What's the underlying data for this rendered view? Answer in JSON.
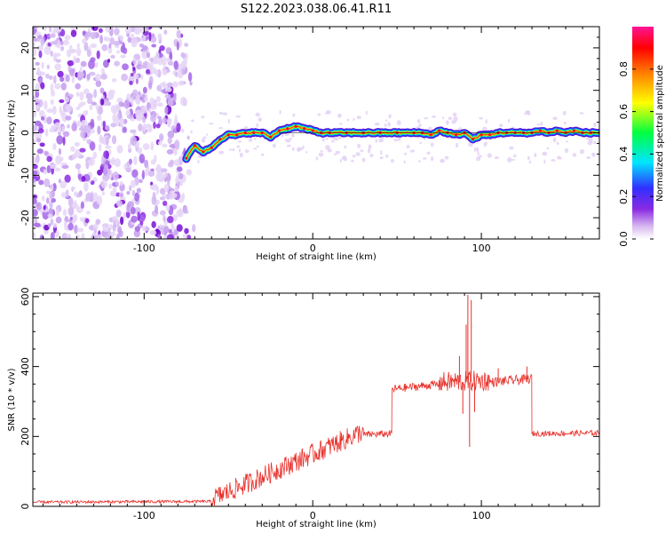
{
  "title": "S122.2023.038.06.41.R11",
  "chart_data": [
    {
      "type": "heatmap",
      "name": "spectrogram",
      "xlabel": "Height of straight line (km)",
      "ylabel": "Frequency (Hz)",
      "xlim": [
        -166,
        170
      ],
      "ylim": [
        -25,
        25
      ],
      "xticks": [
        -100,
        0,
        100
      ],
      "yticks": [
        -20,
        -10,
        0,
        10,
        20
      ],
      "noise_region_x": [
        -166,
        -72
      ],
      "ridge": {
        "x": [
          -75,
          -70,
          -65,
          -60,
          -55,
          -50,
          -45,
          -40,
          -35,
          -30,
          -25,
          -20,
          -15,
          -10,
          -5,
          0,
          5,
          10,
          20,
          30,
          40,
          50,
          60,
          65,
          70,
          75,
          80,
          85,
          90,
          95,
          100,
          105,
          110,
          115,
          120,
          125,
          130,
          135,
          140,
          145,
          150,
          155,
          160,
          165,
          170
        ],
        "freq": [
          -6,
          -3,
          -4.5,
          -3.5,
          -1.5,
          -0.5,
          -0.5,
          0,
          0,
          0,
          -1,
          0.5,
          1,
          1.5,
          1,
          0.5,
          0,
          0,
          0,
          0,
          0,
          0,
          0,
          0,
          -0.5,
          0.5,
          0,
          -0.5,
          0,
          -1.5,
          -0.5,
          -0.5,
          0,
          0,
          0,
          0,
          0,
          0.5,
          0,
          0.5,
          0,
          0.5,
          0,
          0,
          0
        ]
      },
      "colorbar": {
        "label": "Normalized spectral amplitude",
        "range": [
          0,
          1
        ],
        "ticks": [
          "0.0",
          "0.2",
          "0.4",
          "0.6",
          "0.8"
        ],
        "tick_values": [
          0,
          0.2,
          0.4,
          0.6,
          0.8
        ],
        "colors": [
          "#ffffff",
          "#d8b8f0",
          "#8a2be2",
          "#3030ff",
          "#00e5ff",
          "#00ff40",
          "#ffff00",
          "#ff8000",
          "#ff0000",
          "#ff1493"
        ]
      }
    },
    {
      "type": "line",
      "name": "snr",
      "xlabel": "Height of straight line (km)",
      "ylabel": "SNR (10 * v/v)",
      "xlim": [
        -166,
        170
      ],
      "ylim": [
        0,
        610
      ],
      "xticks": [
        -100,
        0,
        100
      ],
      "yticks": [
        0,
        200,
        400,
        600
      ],
      "color": "#e8302a",
      "segments": [
        {
          "x": [
            -166,
            -60
          ],
          "y": [
            12,
            14
          ],
          "noise": 4
        },
        {
          "x": [
            -60,
            30
          ],
          "y": [
            20,
            215
          ],
          "noise": 30
        },
        {
          "x": [
            30,
            47
          ],
          "y": [
            205,
            208
          ],
          "noise": 10
        },
        {
          "x": [
            47,
            75
          ],
          "y": [
            335,
            350
          ],
          "noise": 12
        },
        {
          "x": [
            75,
            105
          ],
          "y": [
            355,
            360
          ],
          "noise": 30
        },
        {
          "x": [
            105,
            130
          ],
          "y": [
            355,
            365
          ],
          "noise": 14
        },
        {
          "x": [
            130,
            170
          ],
          "y": [
            208,
            210
          ],
          "noise": 8
        }
      ],
      "spikes": [
        {
          "x": 87,
          "y": 430
        },
        {
          "x": 89,
          "y": 265
        },
        {
          "x": 91,
          "y": 520
        },
        {
          "x": 92,
          "y": 605
        },
        {
          "x": 93,
          "y": 170
        },
        {
          "x": 94,
          "y": 590
        },
        {
          "x": 96,
          "y": 270
        },
        {
          "x": 110,
          "y": 395
        },
        {
          "x": 127,
          "y": 400
        }
      ]
    }
  ]
}
